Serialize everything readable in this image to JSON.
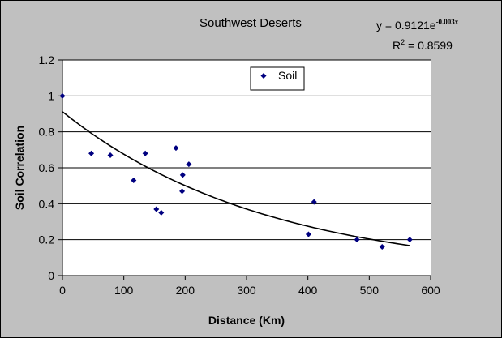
{
  "chart_data": {
    "type": "scatter",
    "title": "Southwest Deserts",
    "xlabel": "Distance (Km)",
    "ylabel": "Soil Correlation",
    "xlim": [
      0,
      600
    ],
    "ylim": [
      0,
      1.2
    ],
    "x_ticks": [
      "0",
      "100",
      "200",
      "300",
      "400",
      "500",
      "600"
    ],
    "y_ticks": [
      "0",
      "0.2",
      "0.4",
      "0.6",
      "0.8",
      "1",
      "1.2"
    ],
    "x_tick_values": [
      0,
      100,
      200,
      300,
      400,
      500,
      600
    ],
    "y_tick_values": [
      0,
      0.2,
      0.4,
      0.6,
      0.8,
      1.0,
      1.2
    ],
    "grid": "horizontal",
    "legend_position": "top-center",
    "series": [
      {
        "name": "Soil",
        "color": "#000080",
        "marker": "diamond",
        "points": [
          {
            "x": 0,
            "y": 1.0
          },
          {
            "x": 47,
            "y": 0.68
          },
          {
            "x": 78,
            "y": 0.67
          },
          {
            "x": 116,
            "y": 0.53
          },
          {
            "x": 135,
            "y": 0.68
          },
          {
            "x": 153,
            "y": 0.37
          },
          {
            "x": 161,
            "y": 0.35
          },
          {
            "x": 185,
            "y": 0.71
          },
          {
            "x": 195,
            "y": 0.47
          },
          {
            "x": 196,
            "y": 0.56
          },
          {
            "x": 206,
            "y": 0.62
          },
          {
            "x": 401,
            "y": 0.23
          },
          {
            "x": 410,
            "y": 0.41
          },
          {
            "x": 480,
            "y": 0.2
          },
          {
            "x": 521,
            "y": 0.16
          },
          {
            "x": 566,
            "y": 0.2
          }
        ]
      }
    ],
    "trendline": {
      "type": "exponential",
      "a": 0.9121,
      "b": -0.003,
      "x_range": [
        0,
        566
      ],
      "equation_text": {
        "prefix": "y = 0.9121e",
        "exponent": "-0.003x"
      },
      "r2_text": {
        "base": "R",
        "exponent": "2",
        "suffix": " = 0.8599"
      }
    }
  }
}
